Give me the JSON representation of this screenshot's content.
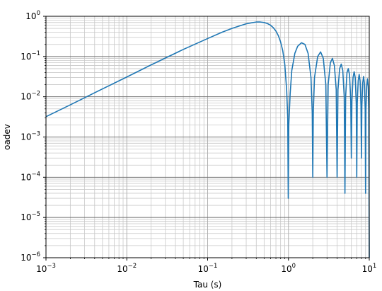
{
  "chart_data": {
    "type": "line",
    "title": "",
    "xlabel": "Tau (s)",
    "ylabel": "oadev",
    "xscale": "log",
    "yscale": "log",
    "xlim": [
      0.001,
      10
    ],
    "ylim": [
      1e-06,
      1
    ],
    "grid": "major and minor",
    "x_tick_labels": [
      {
        "value": 0.001,
        "base": "10",
        "exp": "−3"
      },
      {
        "value": 0.01,
        "base": "10",
        "exp": "−2"
      },
      {
        "value": 0.1,
        "base": "10",
        "exp": "−1"
      },
      {
        "value": 1,
        "base": "10",
        "exp": "0"
      },
      {
        "value": 10,
        "base": "10",
        "exp": "1"
      }
    ],
    "y_tick_labels": [
      {
        "value": 1e-06,
        "base": "10",
        "exp": "−6"
      },
      {
        "value": 1e-05,
        "base": "10",
        "exp": "−5"
      },
      {
        "value": 0.0001,
        "base": "10",
        "exp": "−4"
      },
      {
        "value": 0.001,
        "base": "10",
        "exp": "−3"
      },
      {
        "value": 0.01,
        "base": "10",
        "exp": "−2"
      },
      {
        "value": 0.1,
        "base": "10",
        "exp": "−1"
      },
      {
        "value": 1,
        "base": "10",
        "exp": "0"
      }
    ],
    "series": [
      {
        "color": "#1f77b4",
        "points": [
          [
            0.001,
            0.0032
          ],
          [
            0.002,
            0.0063
          ],
          [
            0.005,
            0.0157
          ],
          [
            0.01,
            0.031
          ],
          [
            0.02,
            0.062
          ],
          [
            0.05,
            0.15
          ],
          [
            0.1,
            0.28
          ],
          [
            0.15,
            0.4
          ],
          [
            0.2,
            0.5
          ],
          [
            0.25,
            0.58
          ],
          [
            0.3,
            0.65
          ],
          [
            0.35,
            0.69
          ],
          [
            0.4,
            0.72
          ],
          [
            0.45,
            0.72
          ],
          [
            0.5,
            0.7
          ],
          [
            0.55,
            0.66
          ],
          [
            0.6,
            0.6
          ],
          [
            0.65,
            0.52
          ],
          [
            0.7,
            0.43
          ],
          [
            0.75,
            0.33
          ],
          [
            0.8,
            0.23
          ],
          [
            0.85,
            0.14
          ],
          [
            0.9,
            0.065
          ],
          [
            0.95,
            0.015
          ],
          [
            0.98,
            0.003
          ],
          [
            0.995,
            3e-05
          ],
          [
            1.01,
            0.002
          ],
          [
            1.05,
            0.012
          ],
          [
            1.1,
            0.045
          ],
          [
            1.2,
            0.12
          ],
          [
            1.3,
            0.18
          ],
          [
            1.45,
            0.22
          ],
          [
            1.6,
            0.2
          ],
          [
            1.75,
            0.12
          ],
          [
            1.9,
            0.03
          ],
          [
            1.97,
            0.004
          ],
          [
            2.0,
            0.0001
          ],
          [
            2.03,
            0.004
          ],
          [
            2.1,
            0.03
          ],
          [
            2.3,
            0.1
          ],
          [
            2.5,
            0.13
          ],
          [
            2.7,
            0.09
          ],
          [
            2.9,
            0.02
          ],
          [
            3.0,
            0.0001
          ],
          [
            3.1,
            0.02
          ],
          [
            3.3,
            0.07
          ],
          [
            3.5,
            0.09
          ],
          [
            3.7,
            0.06
          ],
          [
            3.9,
            0.015
          ],
          [
            4.0,
            0.0001
          ],
          [
            4.1,
            0.015
          ],
          [
            4.3,
            0.05
          ],
          [
            4.5,
            0.065
          ],
          [
            4.7,
            0.045
          ],
          [
            4.9,
            0.01
          ],
          [
            5.0,
            4e-05
          ],
          [
            5.1,
            0.01
          ],
          [
            5.3,
            0.04
          ],
          [
            5.5,
            0.05
          ],
          [
            5.7,
            0.035
          ],
          [
            5.9,
            0.008
          ],
          [
            6.0,
            0.0003
          ],
          [
            6.1,
            0.008
          ],
          [
            6.3,
            0.03
          ],
          [
            6.5,
            0.042
          ],
          [
            6.7,
            0.03
          ],
          [
            6.9,
            0.007
          ],
          [
            7.0,
            0.0001
          ],
          [
            7.1,
            0.007
          ],
          [
            7.3,
            0.025
          ],
          [
            7.5,
            0.036
          ],
          [
            7.7,
            0.025
          ],
          [
            7.9,
            0.006
          ],
          [
            8.0,
            0.0003
          ],
          [
            8.1,
            0.006
          ],
          [
            8.3,
            0.022
          ],
          [
            8.5,
            0.032
          ],
          [
            8.7,
            0.022
          ],
          [
            8.9,
            0.005
          ],
          [
            9.0,
            4e-05
          ],
          [
            9.1,
            0.005
          ],
          [
            9.3,
            0.019
          ],
          [
            9.5,
            0.028
          ],
          [
            9.7,
            0.018
          ],
          [
            9.85,
            0.005
          ],
          [
            10.0,
            1e-06
          ]
        ]
      }
    ]
  }
}
